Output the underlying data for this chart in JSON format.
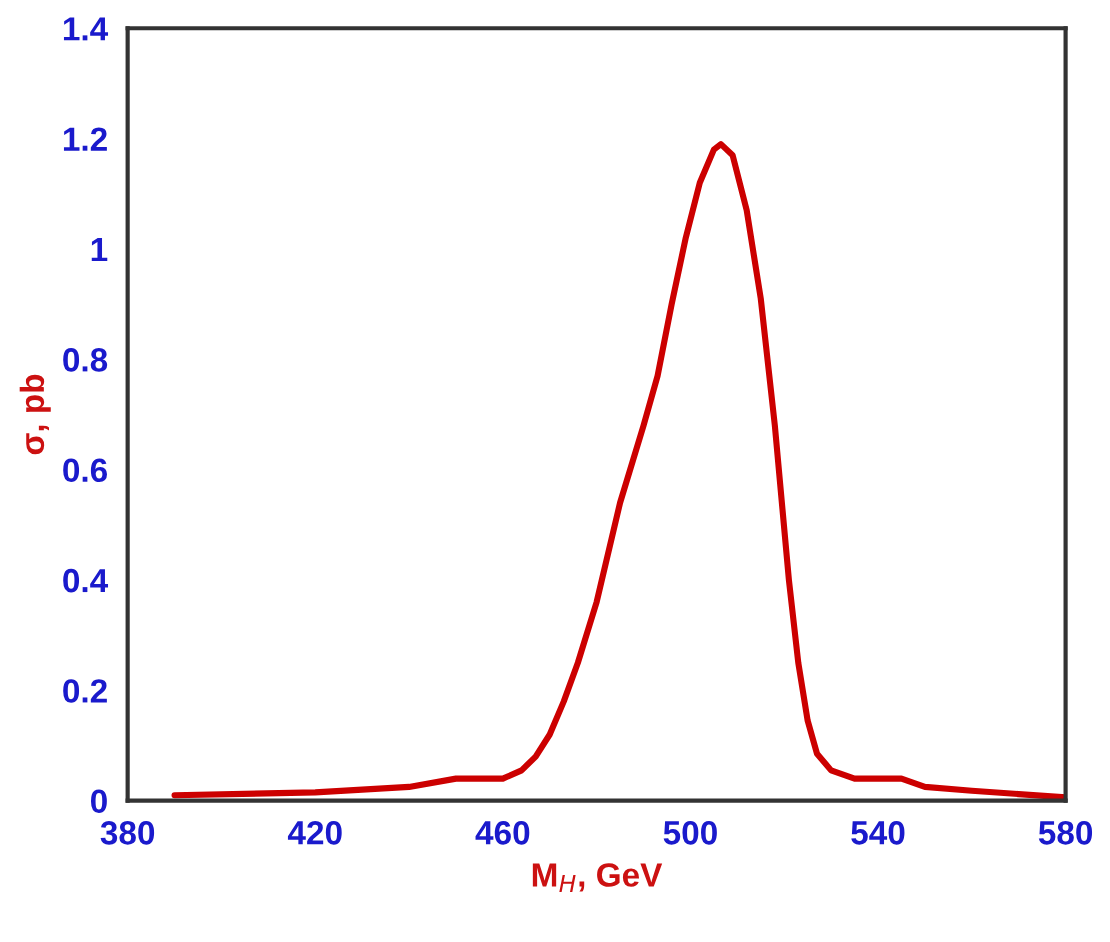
{
  "chart_data": {
    "type": "line",
    "xlabel": "M$_{H}$, GeV",
    "ylabel": "σ, pb",
    "xlim": [
      380,
      580
    ],
    "xticks": [
      380,
      420,
      460,
      500,
      540,
      580
    ],
    "ylim": [
      0,
      1.4
    ],
    "yticks": [
      0,
      0.2,
      0.4,
      0.6,
      0.8,
      1,
      1.2,
      1.4
    ],
    "grid": false,
    "legend": false,
    "marker": "none",
    "line_style": "solid",
    "series": [
      {
        "color": "#cc0000",
        "x": [
          390,
          420,
          440,
          450,
          455,
          460,
          464,
          467,
          470,
          473,
          476,
          480,
          485,
          490,
          493,
          496,
          499,
          502,
          505,
          506.5,
          509,
          512,
          515,
          518,
          521,
          523,
          525,
          527,
          530,
          535,
          545,
          550,
          560,
          570,
          580
        ],
        "values": [
          0.01,
          0.015,
          0.025,
          0.04,
          0.04,
          0.04,
          0.055,
          0.08,
          0.12,
          0.18,
          0.25,
          0.36,
          0.54,
          0.68,
          0.77,
          0.9,
          1.02,
          1.12,
          1.18,
          1.19,
          1.17,
          1.07,
          0.91,
          0.68,
          0.4,
          0.25,
          0.145,
          0.085,
          0.055,
          0.04,
          0.04,
          0.025,
          0.018,
          0.012,
          0.006
        ]
      }
    ]
  }
}
